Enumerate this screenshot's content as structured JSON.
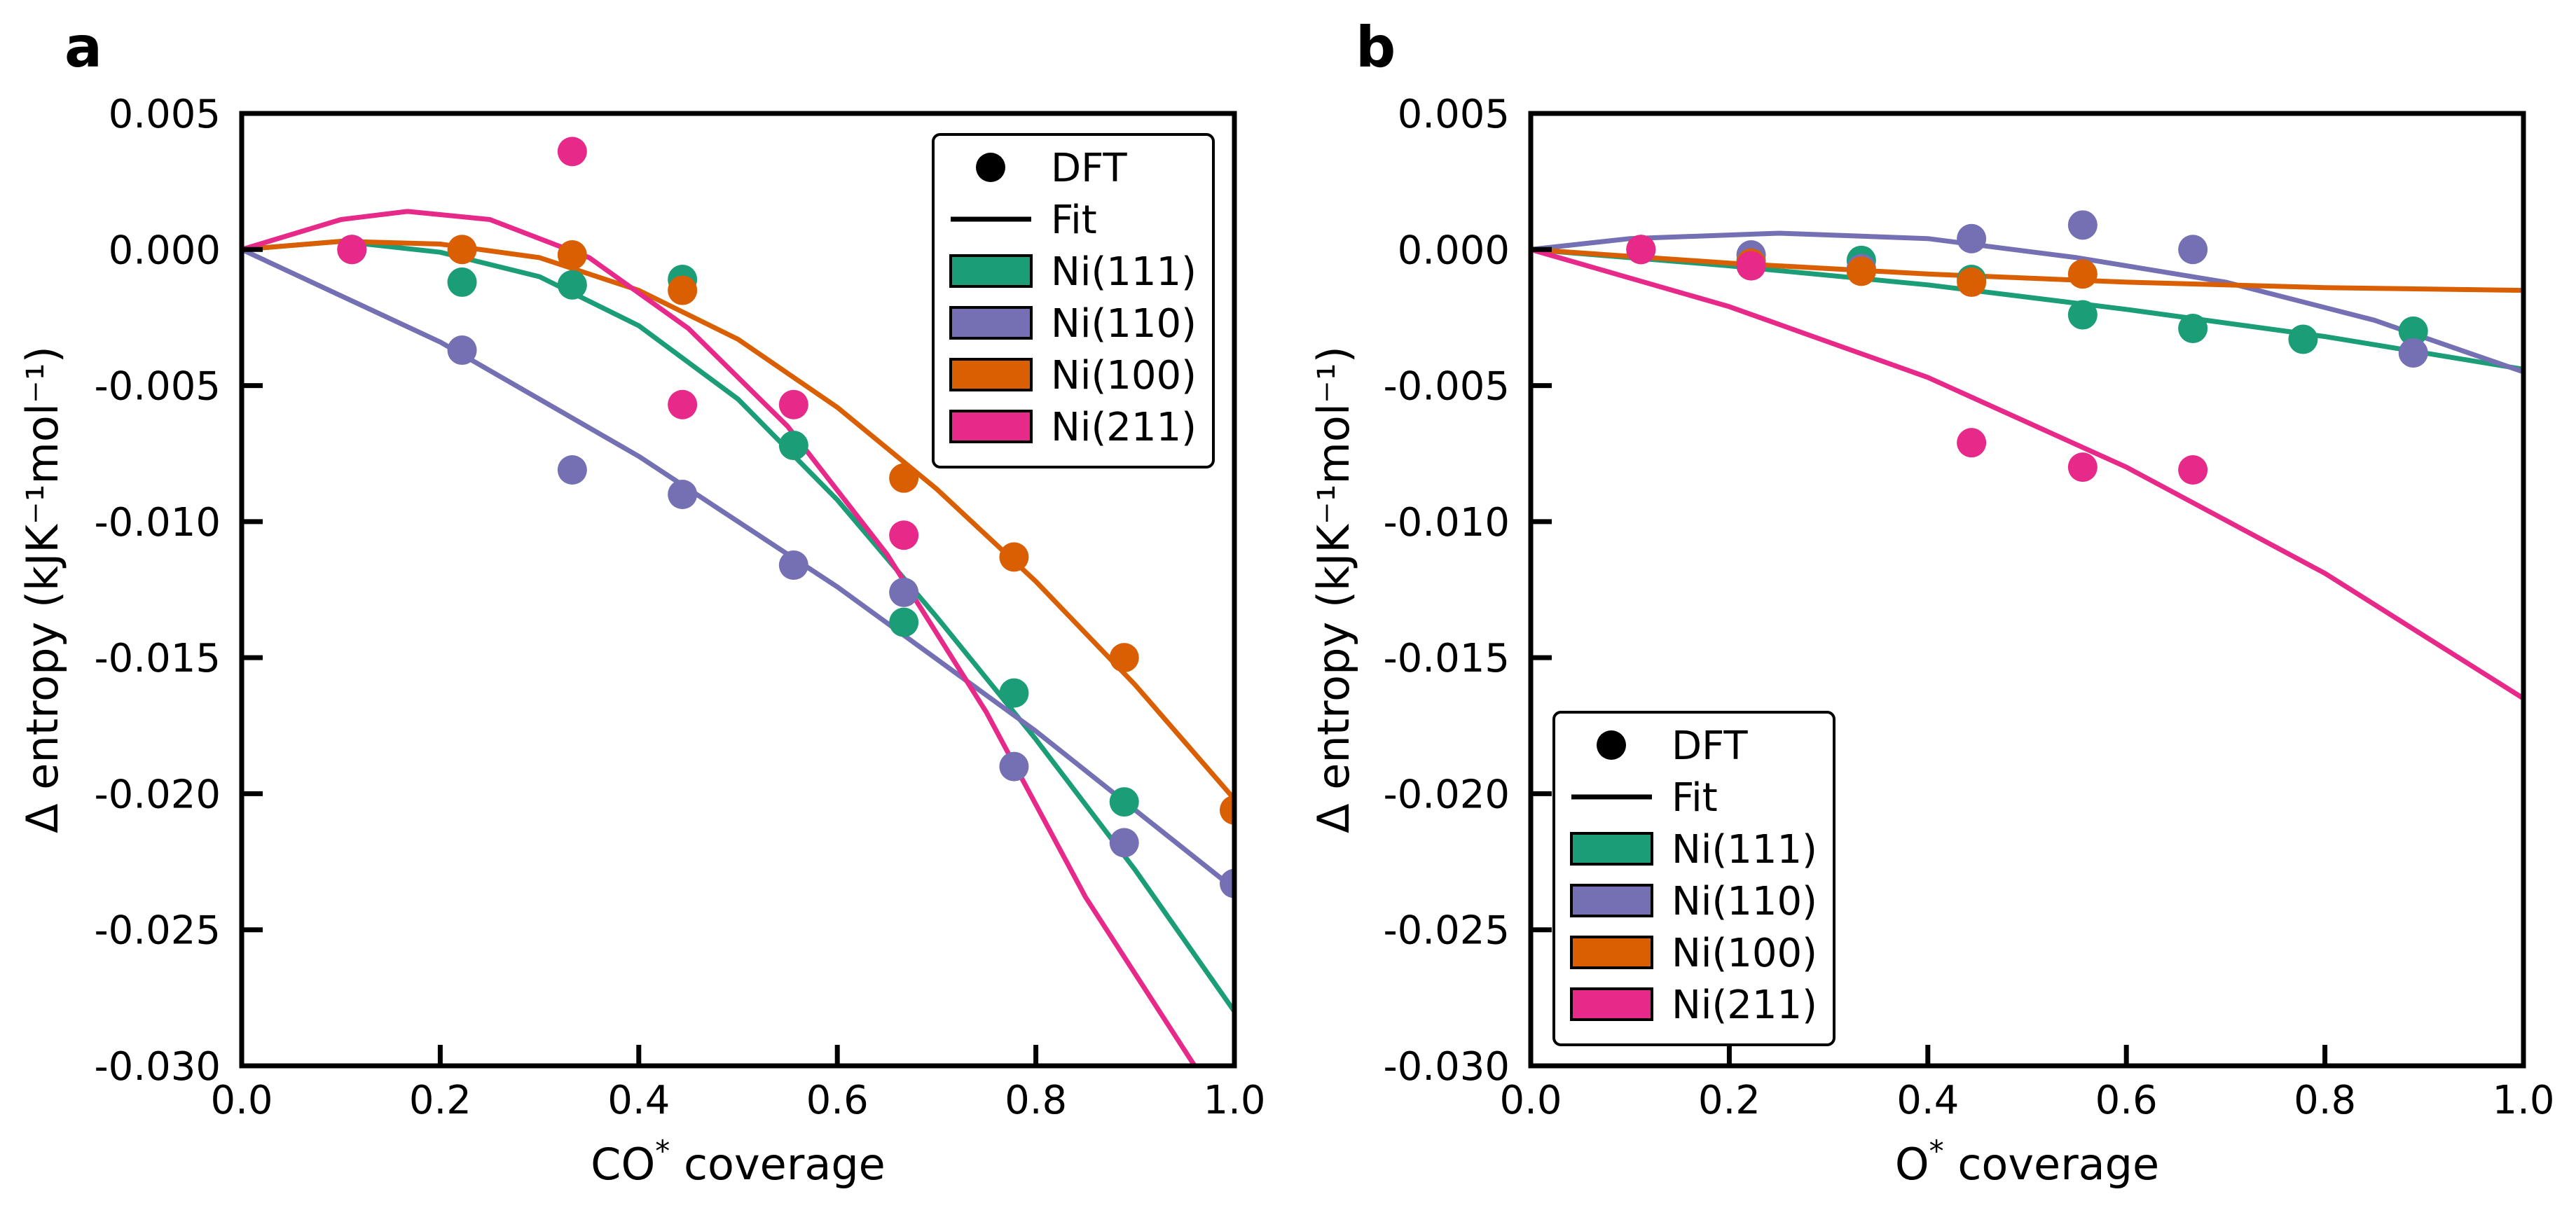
{
  "colors": {
    "Ni(111)": "#1b9e77",
    "Ni(110)": "#7570b3",
    "Ni(100)": "#d95f02",
    "Ni(211)": "#e7298a",
    "frame": "#000000"
  },
  "legend_labels": {
    "dft": "DFT",
    "fit": "Fit",
    "ni111": "Ni(111)",
    "ni110": "Ni(110)",
    "ni100": "Ni(100)",
    "ni211": "Ni(211)"
  },
  "chart_data": [
    {
      "type": "scatter",
      "panel_label": "a",
      "title": "",
      "xlabel": "CO",
      "xlabel_sup": "*",
      "xlabel_suffix": " coverage",
      "ylabel": "Δ entropy (kJK⁻¹mol⁻¹)",
      "xlim": [
        0.0,
        1.0
      ],
      "ylim": [
        -0.03,
        0.005
      ],
      "x_ticks": [
        "0.0",
        "0.2",
        "0.4",
        "0.6",
        "0.8",
        "1.0"
      ],
      "y_ticks": [
        "0.005",
        "0.000",
        "-0.005",
        "-0.010",
        "-0.015",
        "-0.020",
        "-0.025",
        "-0.030"
      ],
      "grid": false,
      "legend_position": "top-right",
      "series": [
        {
          "name": "Ni(111)",
          "points": [
            [
              0.111,
              0.0
            ],
            [
              0.222,
              -0.0012
            ],
            [
              0.333,
              -0.0013
            ],
            [
              0.444,
              -0.0011
            ],
            [
              0.556,
              -0.0072
            ],
            [
              0.667,
              -0.0137
            ],
            [
              0.778,
              -0.0163
            ],
            [
              0.889,
              -0.0203
            ]
          ],
          "fit": [
            [
              0.0,
              0.0
            ],
            [
              0.1,
              0.0003
            ],
            [
              0.2,
              -0.0001
            ],
            [
              0.3,
              -0.001
            ],
            [
              0.4,
              -0.0028
            ],
            [
              0.5,
              -0.0055
            ],
            [
              0.6,
              -0.0092
            ],
            [
              0.7,
              -0.0135
            ],
            [
              0.8,
              -0.018
            ],
            [
              0.9,
              -0.0228
            ],
            [
              1.0,
              -0.028
            ]
          ]
        },
        {
          "name": "Ni(110)",
          "points": [
            [
              0.222,
              -0.0037
            ],
            [
              0.333,
              -0.0081
            ],
            [
              0.444,
              -0.009
            ],
            [
              0.556,
              -0.0116
            ],
            [
              0.667,
              -0.0126
            ],
            [
              0.778,
              -0.019
            ],
            [
              0.889,
              -0.0218
            ],
            [
              1.0,
              -0.0233
            ]
          ],
          "fit": [
            [
              0.0,
              0.0
            ],
            [
              0.2,
              -0.0034
            ],
            [
              0.4,
              -0.0076
            ],
            [
              0.6,
              -0.0124
            ],
            [
              0.8,
              -0.0177
            ],
            [
              1.0,
              -0.0235
            ]
          ]
        },
        {
          "name": "Ni(100)",
          "points": [
            [
              0.222,
              0.0
            ],
            [
              0.333,
              -0.0002
            ],
            [
              0.444,
              -0.0015
            ],
            [
              0.667,
              -0.0084
            ],
            [
              0.778,
              -0.0113
            ],
            [
              0.889,
              -0.015
            ],
            [
              1.0,
              -0.0206
            ]
          ],
          "fit": [
            [
              0.0,
              0.0
            ],
            [
              0.1,
              0.0003
            ],
            [
              0.2,
              0.0002
            ],
            [
              0.3,
              -0.0003
            ],
            [
              0.4,
              -0.0015
            ],
            [
              0.5,
              -0.0033
            ],
            [
              0.6,
              -0.0058
            ],
            [
              0.7,
              -0.0088
            ],
            [
              0.8,
              -0.0122
            ],
            [
              0.9,
              -0.016
            ],
            [
              1.0,
              -0.0202
            ]
          ]
        },
        {
          "name": "Ni(211)",
          "points": [
            [
              0.111,
              0.0
            ],
            [
              0.333,
              0.0036
            ],
            [
              0.444,
              -0.0057
            ],
            [
              0.556,
              -0.0057
            ],
            [
              0.667,
              -0.0105
            ]
          ],
          "fit": [
            [
              0.0,
              0.0
            ],
            [
              0.1,
              0.0011
            ],
            [
              0.167,
              0.0014
            ],
            [
              0.25,
              0.0011
            ],
            [
              0.35,
              -0.0003
            ],
            [
              0.45,
              -0.0029
            ],
            [
              0.55,
              -0.0065
            ],
            [
              0.65,
              -0.0112
            ],
            [
              0.75,
              -0.017
            ],
            [
              0.85,
              -0.0238
            ],
            [
              0.96,
              -0.03
            ]
          ]
        }
      ]
    },
    {
      "type": "scatter",
      "panel_label": "b",
      "title": "",
      "xlabel": "O",
      "xlabel_sup": "*",
      "xlabel_suffix": " coverage",
      "ylabel": "Δ entropy (kJK⁻¹mol⁻¹)",
      "xlim": [
        0.0,
        1.0
      ],
      "ylim": [
        -0.03,
        0.005
      ],
      "x_ticks": [
        "0.0",
        "0.2",
        "0.4",
        "0.6",
        "0.8",
        "1.0"
      ],
      "y_ticks": [
        "0.005",
        "0.000",
        "-0.005",
        "-0.010",
        "-0.015",
        "-0.020",
        "-0.025",
        "-0.030"
      ],
      "grid": false,
      "legend_position": "bottom-left",
      "series": [
        {
          "name": "Ni(111)",
          "points": [
            [
              0.111,
              0.0
            ],
            [
              0.222,
              -0.0004
            ],
            [
              0.333,
              -0.0004
            ],
            [
              0.444,
              -0.0011
            ],
            [
              0.556,
              -0.0024
            ],
            [
              0.667,
              -0.0029
            ],
            [
              0.778,
              -0.0033
            ],
            [
              0.889,
              -0.003
            ]
          ],
          "fit": [
            [
              0.0,
              0.0
            ],
            [
              0.2,
              -0.0006
            ],
            [
              0.4,
              -0.0013
            ],
            [
              0.6,
              -0.0022
            ],
            [
              0.8,
              -0.0032
            ],
            [
              1.0,
              -0.0044
            ]
          ]
        },
        {
          "name": "Ni(110)",
          "points": [
            [
              0.222,
              -0.0002
            ],
            [
              0.333,
              -0.0007
            ],
            [
              0.444,
              0.0004
            ],
            [
              0.556,
              0.0009
            ],
            [
              0.667,
              0.0
            ],
            [
              0.889,
              -0.0038
            ]
          ],
          "fit": [
            [
              0.0,
              0.0
            ],
            [
              0.1,
              0.0004
            ],
            [
              0.25,
              0.0006
            ],
            [
              0.4,
              0.0004
            ],
            [
              0.55,
              -0.0003
            ],
            [
              0.7,
              -0.0012
            ],
            [
              0.85,
              -0.0026
            ],
            [
              1.0,
              -0.0045
            ]
          ]
        },
        {
          "name": "Ni(100)",
          "points": [
            [
              0.111,
              0.0
            ],
            [
              0.222,
              -0.0005
            ],
            [
              0.333,
              -0.0008
            ],
            [
              0.444,
              -0.0012
            ],
            [
              0.556,
              -0.0009
            ]
          ],
          "fit": [
            [
              0.0,
              0.0
            ],
            [
              0.2,
              -0.0005
            ],
            [
              0.4,
              -0.0009
            ],
            [
              0.6,
              -0.0012
            ],
            [
              0.8,
              -0.0014
            ],
            [
              1.0,
              -0.0015
            ]
          ]
        },
        {
          "name": "Ni(211)",
          "points": [
            [
              0.111,
              0.0
            ],
            [
              0.222,
              -0.0006
            ],
            [
              0.444,
              -0.0071
            ],
            [
              0.556,
              -0.008
            ],
            [
              0.667,
              -0.0081
            ]
          ],
          "fit": [
            [
              0.0,
              0.0
            ],
            [
              0.2,
              -0.0021
            ],
            [
              0.4,
              -0.0047
            ],
            [
              0.6,
              -0.008
            ],
            [
              0.8,
              -0.0119
            ],
            [
              1.0,
              -0.0165
            ]
          ]
        }
      ]
    }
  ]
}
